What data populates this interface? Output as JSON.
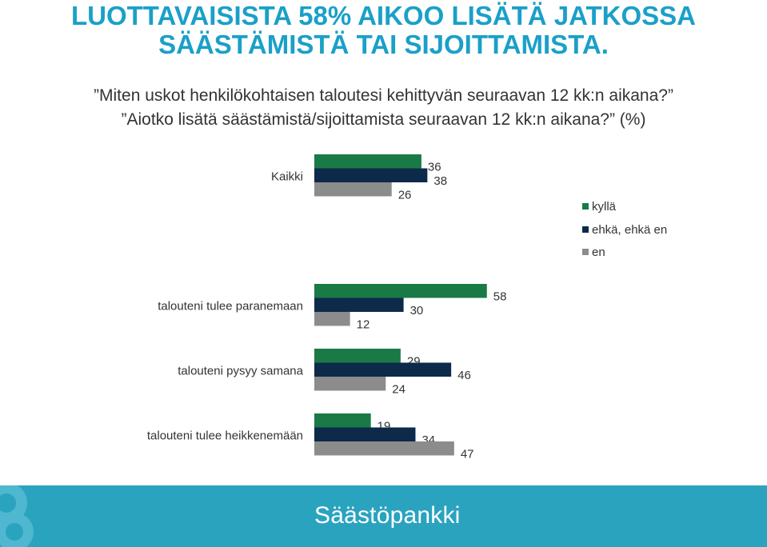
{
  "header": {
    "title_line1": "LUOTTAVAISISTA 58% AIKOO LISÄTÄ JATKOSSA",
    "title_line2": "SÄÄSTÄMISTÄ TAI SIJOITTAMISTA.",
    "question_line1": "”Miten uskot henkilökohtaisen taloutesi kehittyvän seuraavan 12 kk:n aikana?”",
    "question_line2": "”Aiotko lisätä säästämistä/sijoittamista seuraavan 12 kk:n aikana?” (%)"
  },
  "chart_data": {
    "type": "bar",
    "orientation": "horizontal",
    "categories": [
      "Kaikki",
      "talouteni tulee paranemaan",
      "talouteni pysyy samana",
      "talouteni tulee heikkenemään"
    ],
    "series": [
      {
        "name": "kyllä",
        "values": [
          36,
          58,
          29,
          19
        ]
      },
      {
        "name": "ehkä, ehkä en",
        "values": [
          38,
          30,
          46,
          34
        ]
      },
      {
        "name": "en",
        "values": [
          26,
          12,
          24,
          47
        ]
      }
    ],
    "xlim": [
      0,
      100
    ],
    "grid": false,
    "legend": "right",
    "colors": [
      "#1a7a45",
      "#0d2a4a",
      "#8c8c8c"
    ]
  },
  "footer": {
    "brand": "Säästöpankki",
    "background": "#2aa3bf"
  }
}
